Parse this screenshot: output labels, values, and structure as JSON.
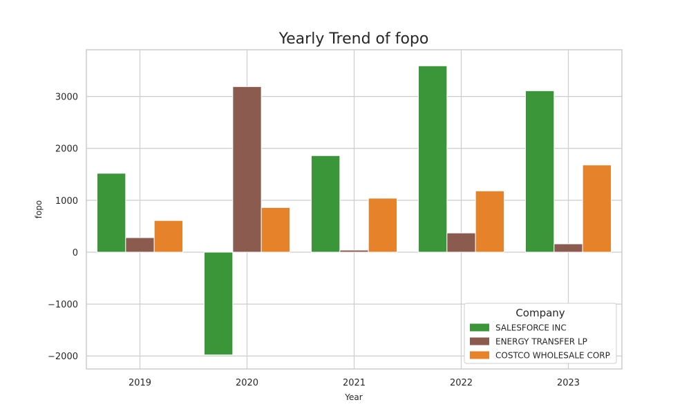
{
  "chart_data": {
    "type": "bar",
    "title": "Yearly Trend of fopo",
    "xlabel": "Year",
    "ylabel": "fopo",
    "categories": [
      "2019",
      "2020",
      "2021",
      "2022",
      "2023"
    ],
    "series": [
      {
        "name": "SALESFORCE INC",
        "color": "#3a9639",
        "values": [
          1520,
          -1980,
          1860,
          3590,
          3110
        ]
      },
      {
        "name": "ENERGY TRANSFER LP",
        "color": "#8c5b50",
        "values": [
          280,
          3190,
          40,
          370,
          160
        ]
      },
      {
        "name": "COSTCO WHOLESALE CORP",
        "color": "#e6822a",
        "values": [
          610,
          860,
          1040,
          1180,
          1680
        ]
      }
    ],
    "ylim": [
      -2250,
      3900
    ],
    "yticks": [
      -2000,
      -1000,
      0,
      1000,
      2000,
      3000
    ],
    "ytick_labels": [
      "−2000",
      "−1000",
      "0",
      "1000",
      "2000",
      "3000"
    ],
    "grid": true,
    "legend": {
      "title": "Company",
      "position": "lower-right"
    }
  }
}
